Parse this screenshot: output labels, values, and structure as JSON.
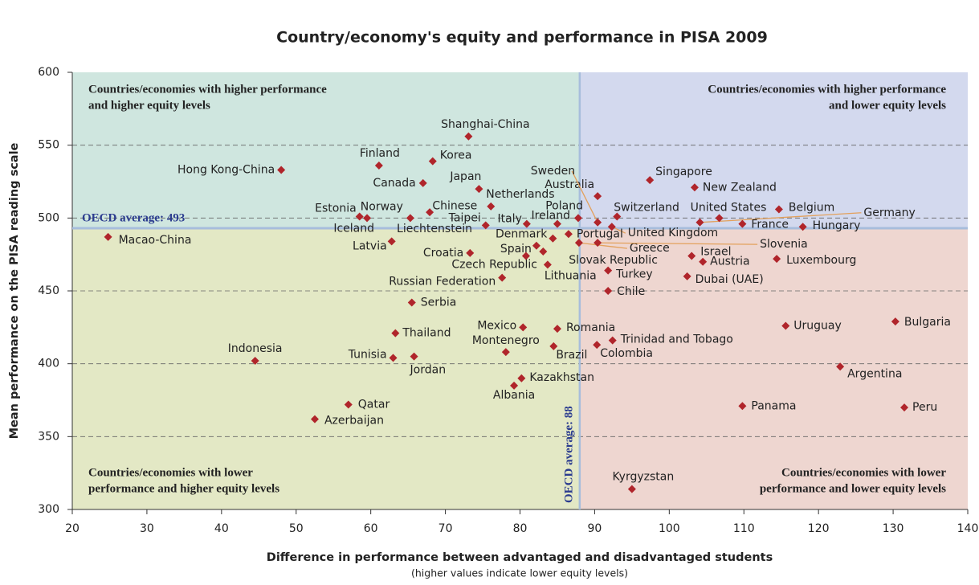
{
  "chart_data": {
    "type": "scatter",
    "title": "Country/economy's equity and performance in PISA 2009",
    "xlabel": "Difference in performance between advantaged and disadvantaged students",
    "xlabel_note": "(higher values indicate lower equity levels)",
    "ylabel": "Mean performance on the PISA reading scale",
    "color": "#b0252b",
    "xlim": [
      20,
      140
    ],
    "ylim": [
      300,
      600
    ],
    "xticks": [
      20,
      30,
      40,
      50,
      60,
      70,
      80,
      90,
      100,
      110,
      120,
      130,
      140
    ],
    "yticks": [
      300,
      350,
      400,
      450,
      500,
      550,
      600
    ],
    "grid": true,
    "reference_x": {
      "value": 88,
      "label": "OECD average: 88"
    },
    "reference_y": {
      "value": 493,
      "label": "OECD average: 493"
    },
    "quadrants": {
      "top_left": [
        "Countries/economies with higher performance",
        "and higher equity levels"
      ],
      "top_right": [
        "Countries/economies with higher performance",
        "and lower equity levels"
      ],
      "bottom_left": [
        "Countries/economies with lower",
        "performance and higher equity levels"
      ],
      "bottom_right": [
        "Countries/economies with lower",
        "performance and lower equity levels"
      ]
    },
    "labels": [
      "Shanghai-China",
      "Finland",
      "Korea",
      "Hong Kong-China",
      "Canada",
      "Japan",
      "Netherlands",
      "Singapore",
      "Australia",
      "New Zealand",
      "Estonia",
      "Iceland",
      "Norway",
      "Liechtenstein",
      "Chinese Taipei",
      "Italy",
      "Ireland",
      "Poland",
      "Sweden",
      "Switzerland",
      "United Kingdom",
      "United States",
      "Germany",
      "France",
      "Belgium",
      "Hungary",
      "Macao-China",
      "Latvia",
      "Portugal",
      "Denmark",
      "Greece",
      "Slovenia",
      "Spain",
      "Croatia",
      "Czech Republic",
      "Slovak Republic",
      "Lithuania",
      "Turkey",
      "Russian Federation",
      "Israel",
      "Austria",
      "Luxembourg",
      "Dubai (UAE)",
      "Chile",
      "Serbia",
      "Thailand",
      "Mexico",
      "Romania",
      "Trinidad and Tobago",
      "Uruguay",
      "Bulgaria",
      "Montenegro",
      "Brazil",
      "Colombia",
      "Indonesia",
      "Tunisia",
      "Jordan",
      "Argentina",
      "Kazakhstan",
      "Albania",
      "Qatar",
      "Azerbaijan",
      "Panama",
      "Peru",
      "Kyrgyzstan"
    ],
    "x": [
      73.1,
      61.1,
      68.3,
      48.0,
      67.0,
      74.5,
      76.1,
      97.4,
      90.4,
      103.4,
      58.5,
      59.5,
      65.3,
      67.9,
      75.4,
      80.9,
      85.0,
      87.8,
      90.4,
      93.0,
      92.3,
      106.7,
      104.1,
      109.8,
      114.7,
      117.9,
      24.8,
      62.8,
      86.5,
      84.4,
      87.9,
      90.4,
      82.2,
      73.3,
      80.8,
      83.1,
      83.7,
      91.8,
      77.6,
      103.0,
      104.5,
      114.4,
      102.4,
      91.8,
      65.5,
      63.3,
      80.4,
      85.0,
      92.4,
      115.6,
      130.3,
      78.1,
      84.5,
      90.3,
      44.5,
      63.0,
      65.8,
      122.9,
      80.2,
      79.2,
      57.0,
      52.5,
      109.8,
      131.5,
      95.0
    ],
    "values": [
      556,
      536,
      539,
      533,
      524,
      520,
      508,
      526,
      515,
      521,
      501,
      500,
      500,
      504,
      495,
      496,
      496,
      500,
      497,
      501,
      494,
      500,
      497,
      496,
      506,
      494,
      487,
      484,
      489,
      486,
      483,
      483,
      481,
      476,
      474,
      477,
      468,
      464,
      459,
      474,
      470,
      472,
      460,
      450,
      442,
      421,
      425,
      424,
      416,
      426,
      429,
      408,
      412,
      413,
      402,
      404,
      405,
      398,
      390,
      385,
      372,
      362,
      371,
      370,
      314
    ]
  }
}
